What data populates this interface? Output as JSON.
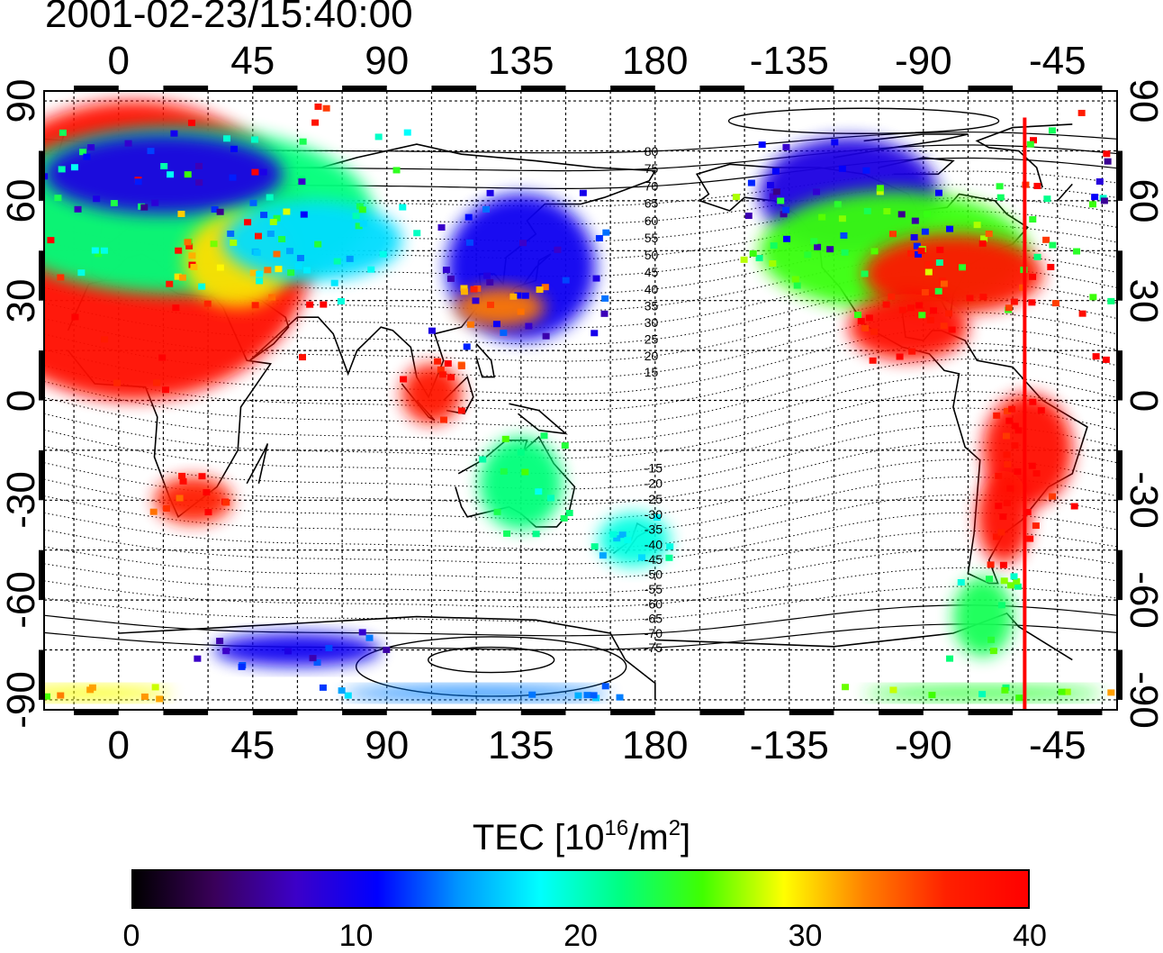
{
  "title": "2001-02-23/15:40:00",
  "lon_ticks": [
    "0",
    "45",
    "90",
    "135",
    "180",
    "-135",
    "-90",
    "-45"
  ],
  "lat_ticks": [
    "90",
    "60",
    "30",
    "0",
    "-30",
    "-60",
    "-90"
  ],
  "contour_labels": [
    "80",
    "75",
    "70",
    "65",
    "60",
    "55",
    "50",
    "45",
    "40",
    "35",
    "30",
    "25",
    "20",
    "15",
    "-15",
    "-20",
    "-25",
    "-30",
    "-35",
    "-40",
    "-45",
    "-50",
    "-55",
    "-60",
    "-65",
    "-70",
    "-75"
  ],
  "colorbar": {
    "title_prefix": "TEC  [10",
    "title_exp1": "16",
    "title_mid": "/m",
    "title_exp2": "2",
    "title_suffix": "]",
    "ticks": [
      "0",
      "10",
      "20",
      "30",
      "40"
    ],
    "min": 0,
    "max": 40,
    "stops": [
      "#000000",
      "#3a005a",
      "#3c00c8",
      "#0000ff",
      "#0096ff",
      "#00ffff",
      "#00ff80",
      "#40ff00",
      "#ffff00",
      "#ff8000",
      "#ff2000",
      "#ff0000"
    ]
  },
  "map_view": {
    "projection": "equirectangular",
    "lon_range": [
      -25,
      335
    ],
    "lat_range": [
      -93,
      93
    ],
    "grid_spacing_deg": 15,
    "marker_lon": -56,
    "marker_color": "#ff0000"
  },
  "tec_patches": [
    {
      "lon": 5,
      "lat": 45,
      "value": 39
    },
    {
      "lon": 20,
      "lat": 57,
      "value": 22
    },
    {
      "lon": 15,
      "lat": 68,
      "value": 9
    },
    {
      "lon": 40,
      "lat": 42,
      "value": 30
    },
    {
      "lon": 65,
      "lat": 48,
      "value": 17
    },
    {
      "lon": 25,
      "lat": -30,
      "value": 37
    },
    {
      "lon": 135,
      "lat": 40,
      "value": 10
    },
    {
      "lon": 128,
      "lat": 28,
      "value": 33
    },
    {
      "lon": 105,
      "lat": 2,
      "value": 38
    },
    {
      "lon": 135,
      "lat": -25,
      "value": 22
    },
    {
      "lon": 173,
      "lat": -42,
      "value": 19
    },
    {
      "lon": -115,
      "lat": 62,
      "value": 9
    },
    {
      "lon": -100,
      "lat": 45,
      "value": 25
    },
    {
      "lon": -80,
      "lat": 38,
      "value": 38
    },
    {
      "lon": -95,
      "lat": 22,
      "value": 39
    },
    {
      "lon": -55,
      "lat": -15,
      "value": 39
    },
    {
      "lon": -63,
      "lat": -35,
      "value": 39
    },
    {
      "lon": -70,
      "lat": -65,
      "value": 23
    },
    {
      "lon": 60,
      "lat": -75,
      "value": 10
    },
    {
      "lon": 120,
      "lat": -88,
      "value": 14
    },
    {
      "lon": -70,
      "lat": -88,
      "value": 24
    },
    {
      "lon": -10,
      "lat": -88,
      "value": 29
    }
  ]
}
